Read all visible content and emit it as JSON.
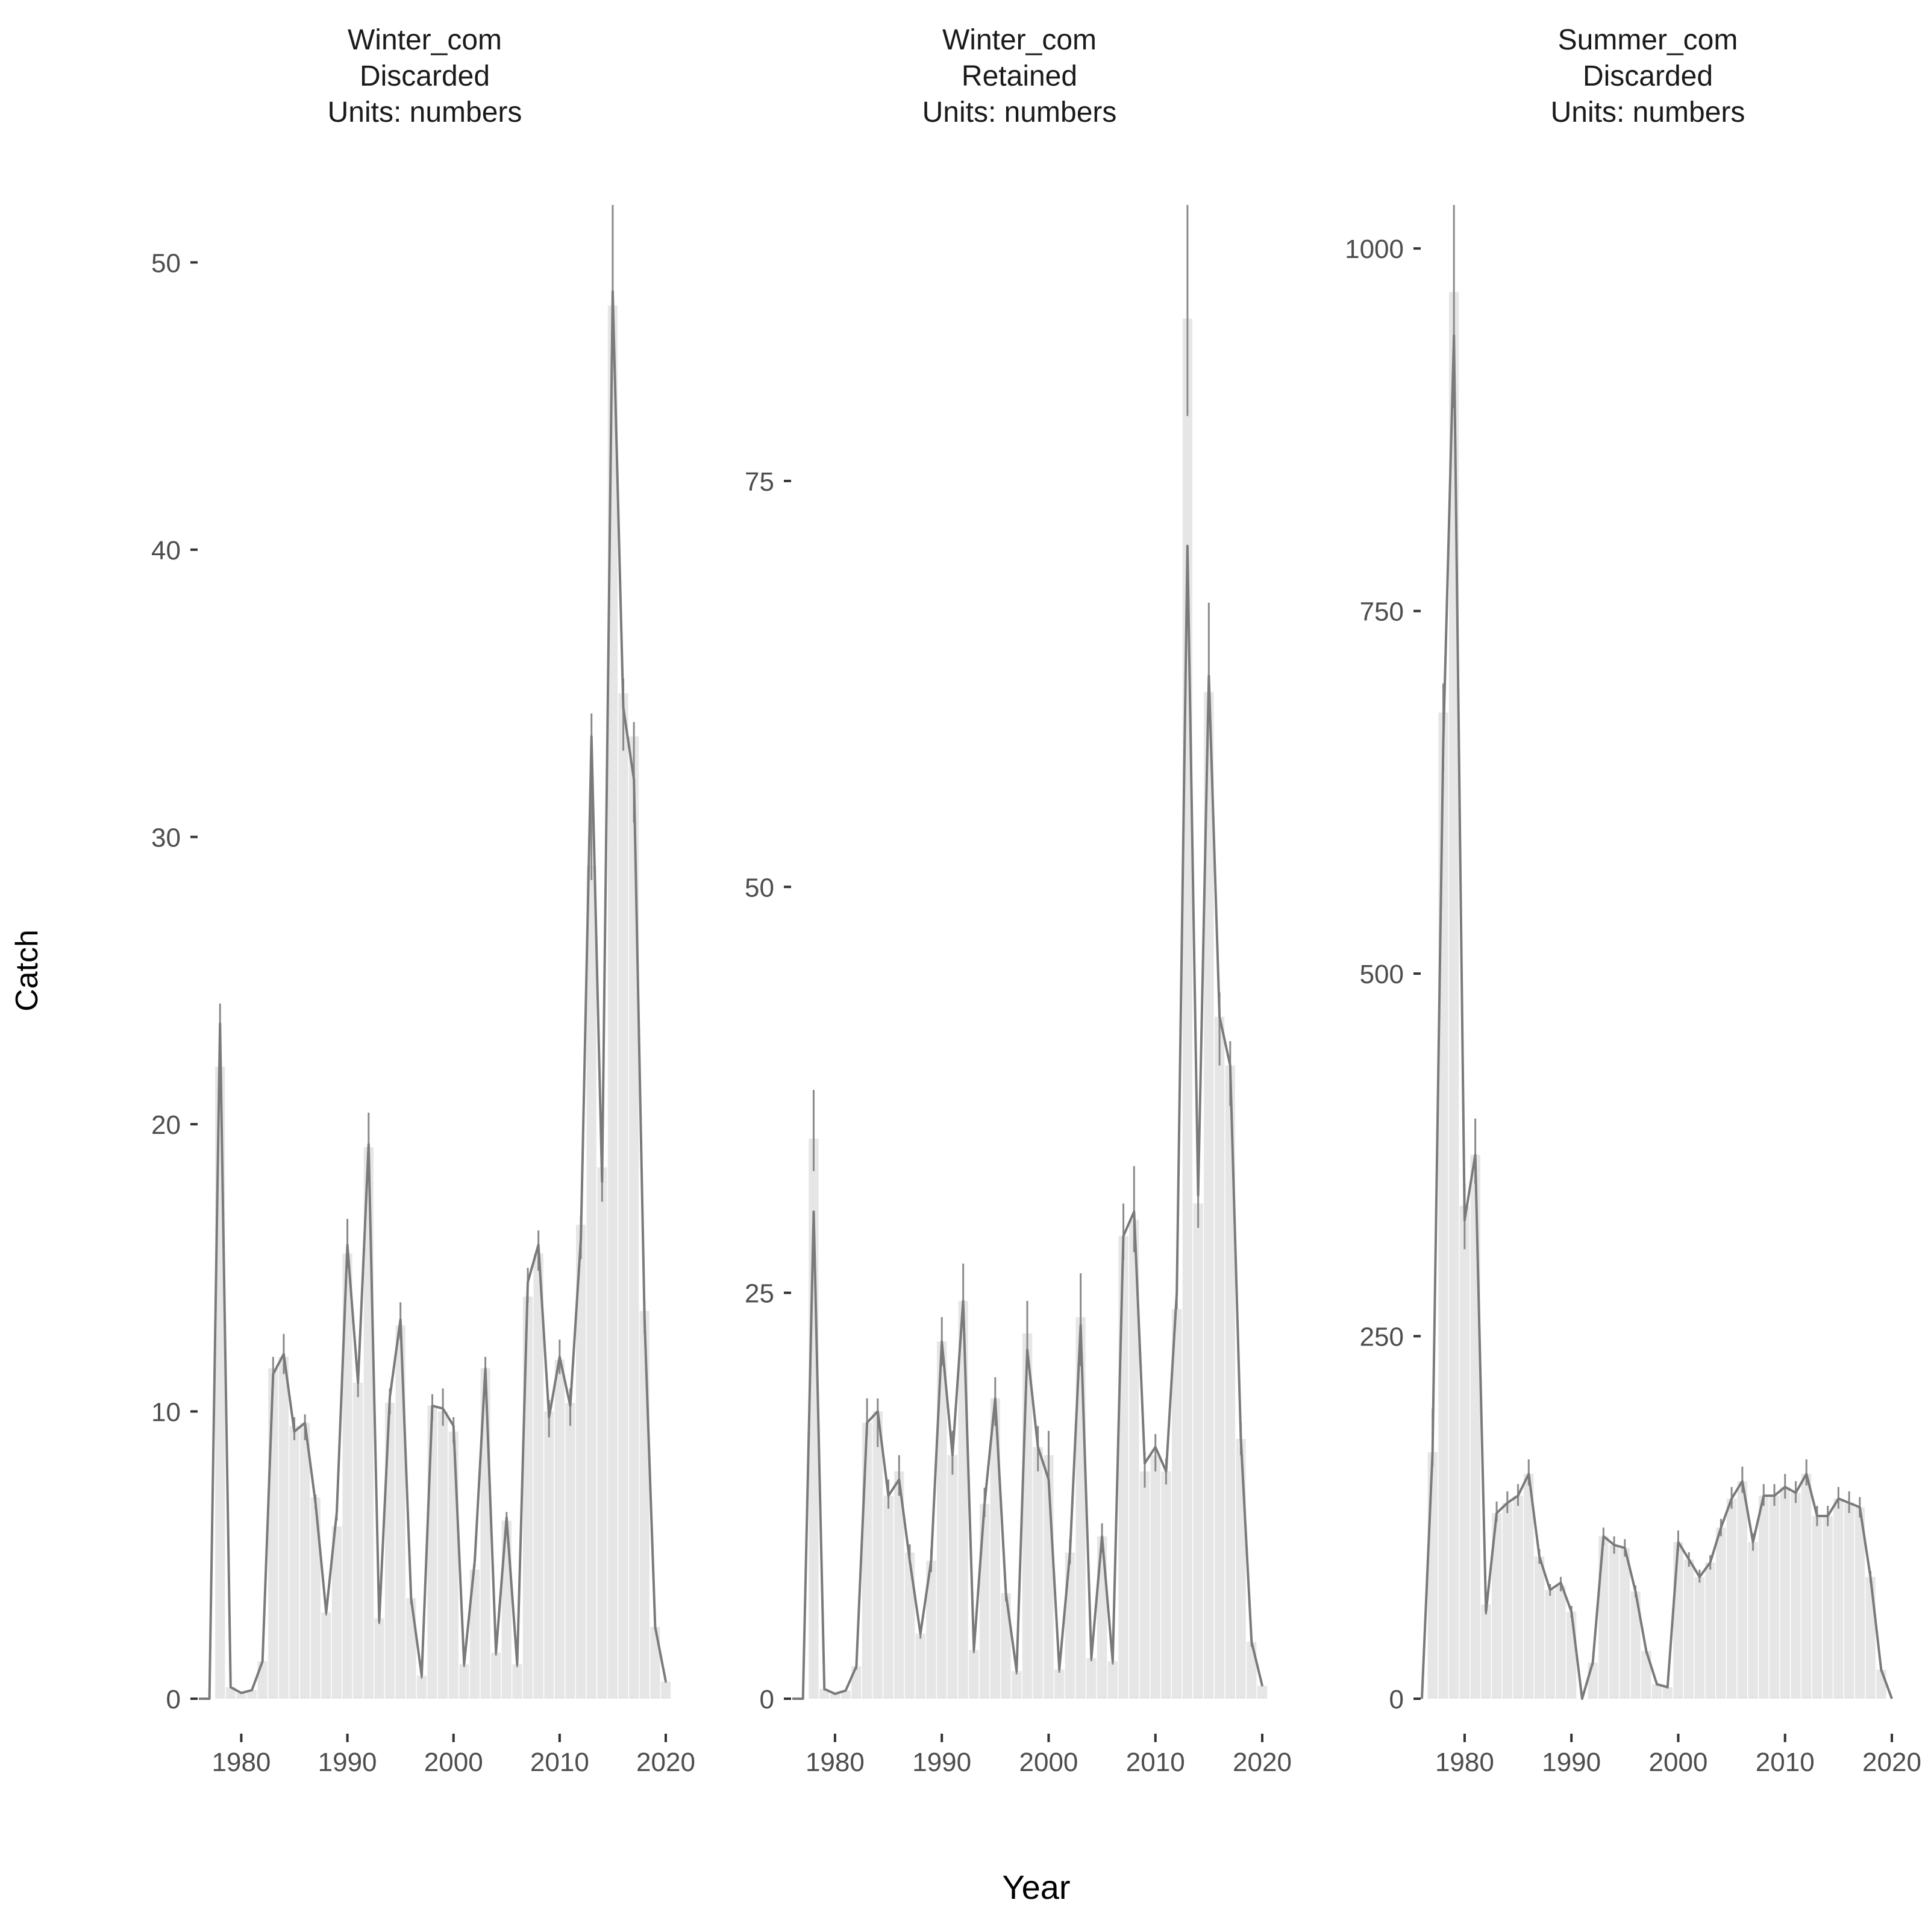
{
  "xlabel": "Year",
  "ylabel": "Catch",
  "chart_data": [
    {
      "type": "bar",
      "title_lines": [
        "Winter_com",
        "Discarded",
        "Units: numbers"
      ],
      "xlabel": "Year",
      "ylabel": "Catch",
      "xlim": [
        1976,
        2020
      ],
      "ylim": [
        0,
        52
      ],
      "x_ticks": [
        1980,
        1990,
        2000,
        2010,
        2020
      ],
      "y_ticks": [
        0,
        10,
        20,
        30,
        40,
        50
      ],
      "years": [
        1976,
        1977,
        1978,
        1979,
        1980,
        1981,
        1982,
        1983,
        1984,
        1985,
        1986,
        1987,
        1988,
        1989,
        1990,
        1991,
        1992,
        1993,
        1994,
        1995,
        1996,
        1997,
        1998,
        1999,
        2000,
        2001,
        2002,
        2003,
        2004,
        2005,
        2006,
        2007,
        2008,
        2009,
        2010,
        2011,
        2012,
        2013,
        2014,
        2015,
        2016,
        2017,
        2018,
        2019,
        2020
      ],
      "bars": [
        0,
        0,
        22,
        0.4,
        0.2,
        0.3,
        1.3,
        11.5,
        11.9,
        9.5,
        9.6,
        7,
        3,
        6,
        15.5,
        11,
        19.2,
        2.8,
        10.3,
        13,
        3.5,
        0.8,
        10.2,
        10,
        9.3,
        1.2,
        4.5,
        11.5,
        1.6,
        6.2,
        1.2,
        14,
        15.5,
        10,
        11.8,
        10.3,
        16.5,
        29,
        18.5,
        48.5,
        35,
        33.5,
        13.5,
        2.5,
        0.6
      ],
      "line": [
        0,
        0,
        23.5,
        0.4,
        0.2,
        0.3,
        1.3,
        11.3,
        12,
        9.3,
        9.6,
        6.8,
        3,
        6.5,
        15.8,
        11,
        19.3,
        2.7,
        10.5,
        13.2,
        3.5,
        0.8,
        10.2,
        10.1,
        9.5,
        1.2,
        4.8,
        11.5,
        1.6,
        6.3,
        1.2,
        14.5,
        15.8,
        9.8,
        11.9,
        10.2,
        16,
        33.5,
        18,
        49,
        34.5,
        32,
        13.2,
        2.5,
        0.6
      ],
      "err_lo": [
        0,
        0,
        21,
        0.4,
        0.2,
        0.3,
        1.3,
        10.9,
        11.3,
        9,
        9,
        6.6,
        2.9,
        6.2,
        15,
        10.5,
        18,
        2.6,
        9.9,
        12.5,
        3.3,
        0.7,
        9.7,
        9.5,
        8.9,
        1.1,
        4.6,
        10.9,
        1.5,
        5.9,
        1.1,
        13.8,
        14.9,
        9.1,
        11.3,
        9.5,
        15.3,
        28.5,
        17.3,
        47,
        33,
        30.5,
        12.7,
        2.4,
        0.55
      ],
      "err_hi": [
        0,
        0,
        24.2,
        0.5,
        0.25,
        0.35,
        1.4,
        11.9,
        12.7,
        9.8,
        9.9,
        7.1,
        3.1,
        6.8,
        16.7,
        11.4,
        20.4,
        2.9,
        10.8,
        13.8,
        3.7,
        0.85,
        10.6,
        10.8,
        9.8,
        1.3,
        5,
        11.9,
        1.7,
        6.5,
        1.3,
        15,
        16.3,
        10.4,
        12.5,
        10.8,
        16.8,
        34.3,
        18.8,
        52,
        35.5,
        34,
        13.8,
        2.6,
        0.65
      ]
    },
    {
      "type": "bar",
      "title_lines": [
        "Winter_com",
        "Retained",
        "Units: numbers"
      ],
      "xlabel": "Year",
      "ylabel": "Catch",
      "xlim": [
        1976,
        2020
      ],
      "ylim": [
        0,
        92
      ],
      "x_ticks": [
        1980,
        1990,
        2000,
        2010,
        2020
      ],
      "y_ticks": [
        0,
        25,
        50,
        75
      ],
      "years": [
        1976,
        1977,
        1978,
        1979,
        1980,
        1981,
        1982,
        1983,
        1984,
        1985,
        1986,
        1987,
        1988,
        1989,
        1990,
        1991,
        1992,
        1993,
        1994,
        1995,
        1996,
        1997,
        1998,
        1999,
        2000,
        2001,
        2002,
        2003,
        2004,
        2005,
        2006,
        2007,
        2008,
        2009,
        2010,
        2011,
        2012,
        2013,
        2014,
        2015,
        2016,
        2017,
        2018,
        2019,
        2020
      ],
      "bars": [
        0,
        0,
        34.5,
        0.6,
        0.3,
        0.5,
        2,
        17,
        17.7,
        12.5,
        14,
        9,
        4,
        8.5,
        22,
        15,
        24.5,
        3,
        12,
        18.5,
        6.5,
        1.7,
        22.5,
        15.5,
        15,
        1.8,
        9,
        23.5,
        2.5,
        10,
        2.3,
        28.5,
        29.5,
        14,
        15,
        14,
        24,
        85,
        30.5,
        62,
        42,
        39,
        16,
        3.5,
        0.8
      ],
      "line": [
        0,
        0,
        30,
        0.6,
        0.3,
        0.5,
        2,
        17,
        17.7,
        12.5,
        13.5,
        8.5,
        4,
        8.5,
        22,
        15,
        24.5,
        3,
        12,
        18.5,
        6.5,
        1.7,
        21.5,
        15.5,
        13.5,
        1.8,
        9,
        23,
        2.5,
        10,
        2.3,
        28.5,
        30,
        14.5,
        15.5,
        14,
        25,
        71,
        31,
        63,
        42,
        39,
        16,
        3.5,
        0.8
      ],
      "err_lo": [
        0,
        0,
        32.5,
        0.5,
        0.25,
        0.45,
        1.8,
        16.2,
        15.5,
        11.7,
        12.5,
        8.3,
        3.7,
        7.8,
        20.5,
        13.8,
        23,
        2.8,
        11.2,
        16.8,
        6,
        1.5,
        20.5,
        14,
        13.5,
        1.6,
        8.3,
        20.5,
        2.3,
        9,
        2.1,
        27,
        27.5,
        13,
        14,
        13.2,
        24,
        79,
        29,
        61,
        39,
        36.5,
        15,
        3.2,
        0.75
      ],
      "err_hi": [
        0,
        0,
        37.5,
        0.7,
        0.35,
        0.55,
        2.2,
        18.5,
        18.5,
        13.5,
        15,
        9.5,
        4.4,
        9.2,
        23.5,
        16.5,
        26.8,
        3.2,
        13,
        19.8,
        7,
        1.9,
        24.5,
        16.8,
        16.5,
        2,
        9.8,
        26.2,
        2.7,
        10.8,
        2.5,
        30.5,
        32.8,
        15.2,
        16.3,
        14.8,
        25.8,
        92,
        32,
        67.5,
        43.5,
        40.5,
        17,
        3.8,
        0.85
      ]
    },
    {
      "type": "bar",
      "title_lines": [
        "Summer_com",
        "Discarded",
        "Units: numbers"
      ],
      "xlabel": "Year",
      "ylabel": "Catch",
      "xlim": [
        1976,
        2020
      ],
      "ylim": [
        0,
        1030
      ],
      "x_ticks": [
        1980,
        1990,
        2000,
        2010,
        2020
      ],
      "y_ticks": [
        0,
        250,
        500,
        750,
        1000
      ],
      "years": [
        1976,
        1977,
        1978,
        1979,
        1980,
        1981,
        1982,
        1983,
        1984,
        1985,
        1986,
        1987,
        1988,
        1989,
        1990,
        1991,
        1992,
        1993,
        1994,
        1995,
        1996,
        1997,
        1998,
        1999,
        2000,
        2001,
        2002,
        2003,
        2004,
        2005,
        2006,
        2007,
        2008,
        2009,
        2010,
        2011,
        2012,
        2013,
        2014,
        2015,
        2016,
        2017,
        2018,
        2019,
        2020
      ],
      "bars": [
        0,
        170,
        680,
        970,
        340,
        375,
        65,
        128,
        135,
        140,
        155,
        98,
        75,
        78,
        60,
        0,
        25,
        112,
        106,
        104,
        74,
        33,
        10,
        8,
        108,
        96,
        84,
        94,
        118,
        138,
        150,
        108,
        140,
        140,
        146,
        142,
        155,
        126,
        126,
        138,
        135,
        132,
        84,
        20,
        0
      ],
      "line": [
        0,
        170,
        660,
        940,
        330,
        375,
        60,
        128,
        135,
        140,
        155,
        98,
        75,
        80,
        60,
        0,
        25,
        112,
        106,
        104,
        74,
        33,
        10,
        8,
        108,
        96,
        84,
        94,
        118,
        138,
        150,
        108,
        140,
        140,
        146,
        142,
        155,
        126,
        126,
        138,
        135,
        132,
        84,
        20,
        0
      ],
      "err_lo": [
        0,
        160,
        640,
        890,
        310,
        355,
        58,
        122,
        128,
        133,
        147,
        93,
        71,
        74,
        56,
        0,
        23,
        106,
        100,
        98,
        70,
        31,
        9,
        7,
        102,
        91,
        80,
        89,
        112,
        131,
        142,
        102,
        133,
        133,
        138,
        135,
        147,
        119,
        119,
        131,
        128,
        125,
        80,
        19,
        0
      ],
      "err_hi": [
        0,
        200,
        700,
        1030,
        355,
        400,
        70,
        136,
        143,
        148,
        165,
        103,
        79,
        84,
        64,
        0,
        27,
        118,
        112,
        110,
        78,
        35,
        11,
        9,
        116,
        101,
        89,
        99,
        124,
        146,
        160,
        114,
        148,
        148,
        155,
        150,
        165,
        133,
        133,
        146,
        143,
        139,
        88,
        21,
        0
      ]
    }
  ]
}
